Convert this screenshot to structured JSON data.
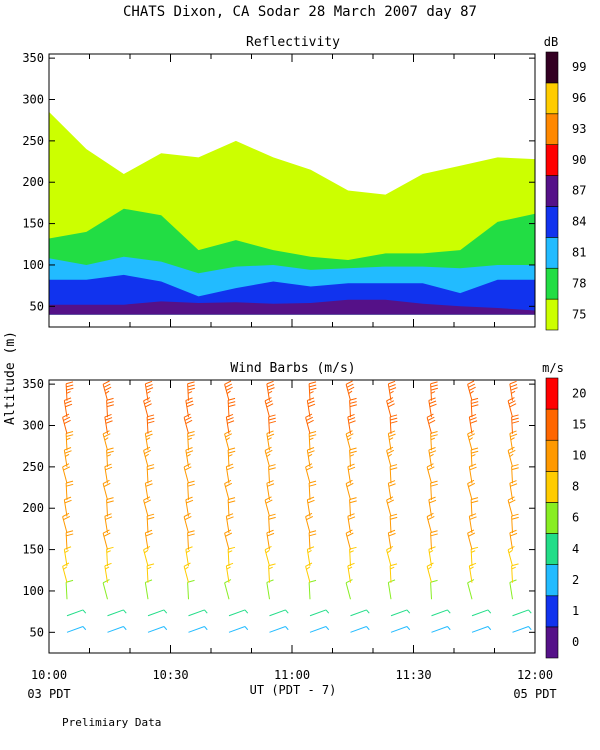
{
  "header": {
    "title": "CHATS Dixon, CA  Sodar  28 March 2007  day  87"
  },
  "footer": {
    "note": "Prelimiary Data",
    "start_date": "03 PDT",
    "end_date": "05 PDT"
  },
  "chart_data": [
    {
      "type": "heatmap",
      "title": "Reflectivity",
      "ylabel": "Altitude (m)",
      "xlabel": "UT  (PDT - 7)",
      "x_ticks": [
        "10:00",
        "10:30",
        "11:00",
        "11:30",
        "12:00"
      ],
      "y_ticks": [
        "50",
        "100",
        "150",
        "200",
        "250",
        "300",
        "350"
      ],
      "ylim": [
        25,
        355
      ],
      "colorbar": {
        "unit": "dB",
        "levels": [
          "75",
          "78",
          "81",
          "84",
          "87",
          "90",
          "93",
          "96",
          "99"
        ],
        "colors": [
          "#ccff00",
          "#22dd44",
          "#22bbff",
          "#1133ee",
          "#551188",
          "#ff0000",
          "#ff8800",
          "#ffcc00",
          "#330022"
        ]
      },
      "layers": [
        {
          "level": "87",
          "color": "#551188",
          "top_altitudes": [
            52,
            52,
            52,
            56,
            54,
            55,
            53,
            54,
            58,
            58,
            53,
            50,
            48,
            45
          ]
        },
        {
          "level": "84",
          "color": "#1133ee",
          "top_altitudes": [
            82,
            82,
            88,
            80,
            62,
            72,
            80,
            74,
            78,
            78,
            78,
            66,
            82,
            82
          ]
        },
        {
          "level": "81",
          "color": "#22bbff",
          "top_altitudes": [
            108,
            100,
            110,
            104,
            90,
            98,
            100,
            94,
            96,
            98,
            98,
            96,
            100,
            100
          ]
        },
        {
          "level": "78",
          "color": "#22dd44",
          "top_altitudes": [
            132,
            140,
            168,
            160,
            118,
            130,
            118,
            110,
            106,
            114,
            114,
            118,
            152,
            162
          ]
        },
        {
          "level": "75",
          "color": "#ccff00",
          "top_altitudes": [
            285,
            240,
            210,
            235,
            230,
            250,
            230,
            215,
            190,
            185,
            210,
            220,
            230,
            228
          ]
        }
      ]
    },
    {
      "type": "scatter",
      "title": "Wind Barbs (m/s)",
      "ylabel": "Altitude (m)",
      "xlabel": "UT  (PDT - 7)",
      "x_ticks": [
        "10:00",
        "10:30",
        "11:00",
        "11:30",
        "12:00"
      ],
      "y_ticks": [
        "50",
        "100",
        "150",
        "200",
        "250",
        "300",
        "350"
      ],
      "ylim": [
        25,
        355
      ],
      "colorbar": {
        "unit": "m/s",
        "levels": [
          "0",
          "1",
          "2",
          "4",
          "6",
          "8",
          "10",
          "15",
          "20"
        ],
        "colors": [
          "#551188",
          "#1133ee",
          "#22bbff",
          "#22dd88",
          "#88ee22",
          "#ffcc00",
          "#ff9900",
          "#ff6600",
          "#ff0000"
        ]
      },
      "profile_times": [
        "10:00",
        "10:10",
        "10:20",
        "10:30",
        "10:40",
        "10:50",
        "11:00",
        "11:10",
        "11:20",
        "11:30",
        "11:40",
        "11:50"
      ],
      "altitudes": [
        50,
        70,
        90,
        110,
        130,
        150,
        170,
        190,
        210,
        230,
        250,
        270,
        290,
        310,
        330,
        350
      ],
      "speed_profile_ms": [
        3,
        4,
        6,
        8,
        9,
        10,
        10,
        11,
        11,
        12,
        13,
        14,
        15,
        16,
        18,
        19
      ]
    }
  ]
}
